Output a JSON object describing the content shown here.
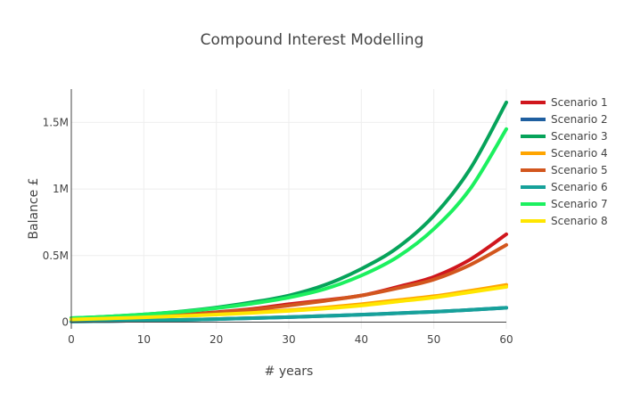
{
  "chart_data": {
    "type": "line",
    "title": "Compound Interest Modelling",
    "xlabel": "# years",
    "ylabel": "Balance £",
    "xlim": [
      0,
      60
    ],
    "ylim": [
      -50000,
      1750000
    ],
    "x_ticks": [
      0,
      10,
      20,
      30,
      40,
      50,
      60
    ],
    "y_ticks": [
      {
        "value": 0,
        "label": "0"
      },
      {
        "value": 500000,
        "label": "0.5M"
      },
      {
        "value": 1000000,
        "label": "1M"
      },
      {
        "value": 1500000,
        "label": "1.5M"
      }
    ],
    "grid": true,
    "legend_position": "right",
    "x": [
      0,
      5,
      10,
      15,
      20,
      25,
      30,
      35,
      40,
      45,
      50,
      55,
      60
    ],
    "series": [
      {
        "name": "Scenario 1",
        "color": "#d0161d",
        "values": [
          20000,
          29000,
          40000,
          55000,
          75000,
          100000,
          135000,
          165000,
          200000,
          265000,
          340000,
          470000,
          660000
        ]
      },
      {
        "name": "Scenario 2",
        "color": "#1f5fa0",
        "values": [
          5000,
          8000,
          12000,
          17000,
          23000,
          30000,
          38000,
          47000,
          56000,
          67000,
          78000,
          92000,
          108000
        ]
      },
      {
        "name": "Scenario 3",
        "color": "#06a35a",
        "values": [
          30000,
          42000,
          58000,
          80000,
          110000,
          150000,
          200000,
          280000,
          400000,
          560000,
          800000,
          1150000,
          1650000
        ]
      },
      {
        "name": "Scenario 4",
        "color": "#ffa500",
        "values": [
          22000,
          30000,
          38000,
          48000,
          60000,
          75000,
          90000,
          110000,
          135000,
          165000,
          195000,
          235000,
          280000
        ]
      },
      {
        "name": "Scenario 5",
        "color": "#d2561e",
        "values": [
          20000,
          28000,
          38000,
          52000,
          72000,
          95000,
          125000,
          160000,
          200000,
          255000,
          320000,
          430000,
          580000
        ]
      },
      {
        "name": "Scenario 6",
        "color": "#16a19a",
        "values": [
          5000,
          8000,
          12000,
          17000,
          23000,
          30000,
          38000,
          47000,
          56000,
          67000,
          78000,
          92000,
          108000
        ]
      },
      {
        "name": "Scenario 7",
        "color": "#1cf05f",
        "values": [
          30000,
          42000,
          58000,
          78000,
          105000,
          140000,
          185000,
          250000,
          350000,
          490000,
          700000,
          1000000,
          1450000
        ]
      },
      {
        "name": "Scenario 8",
        "color": "#ffe600",
        "values": [
          20000,
          28000,
          36000,
          46000,
          57000,
          70000,
          85000,
          102000,
          125000,
          155000,
          185000,
          225000,
          265000
        ]
      }
    ]
  }
}
